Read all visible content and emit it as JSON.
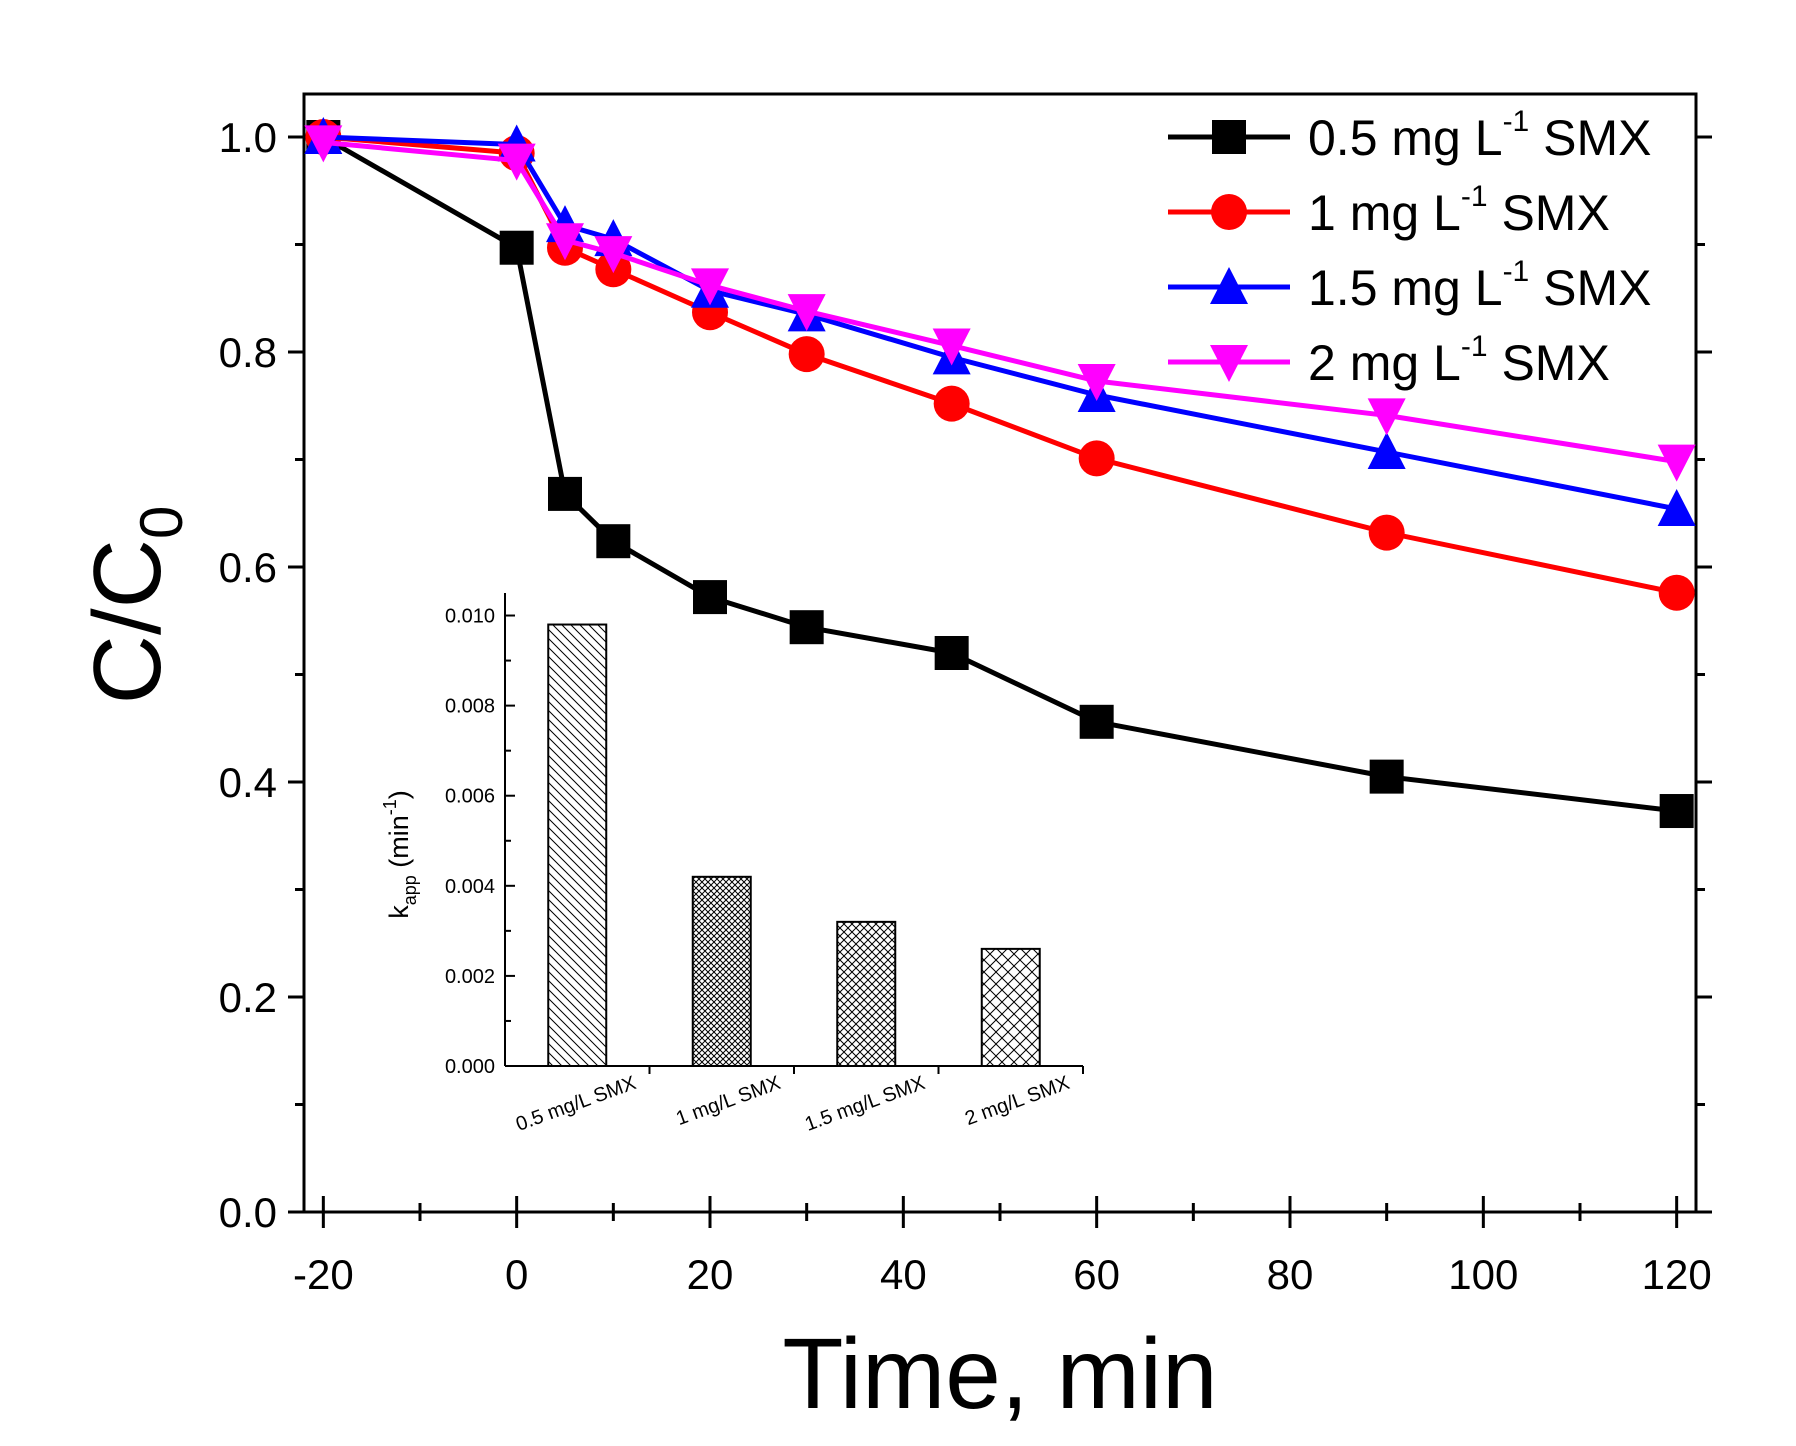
{
  "chart_data": [
    {
      "type": "line",
      "xlabel": "Time, min",
      "ylabel": "C/C",
      "ylabel_sub": "0",
      "xlim": [
        -22,
        122
      ],
      "ylim": [
        0.0,
        1.04
      ],
      "xticks": [
        -20,
        0,
        20,
        40,
        60,
        80,
        100,
        120
      ],
      "xtick_labels": [
        "-20",
        "0",
        "20",
        "40",
        "60",
        "80",
        "100",
        "120"
      ],
      "yticks": [
        0.0,
        0.2,
        0.4,
        0.6,
        0.8,
        1.0
      ],
      "ytick_labels": [
        "0.0",
        "0.2",
        "0.4",
        "0.6",
        "0.8",
        "1.0"
      ],
      "grid": false,
      "legend_position": "top-right",
      "x": [
        -20,
        0,
        5,
        10,
        20,
        30,
        45,
        60,
        90,
        120
      ],
      "series": [
        {
          "name_parts": [
            "0.5 mg L",
            "-1",
            " SMX"
          ],
          "color": "#000000",
          "marker": "square",
          "values": [
            1.0,
            0.897,
            0.668,
            0.624,
            0.572,
            0.544,
            0.52,
            0.456,
            0.405,
            0.373
          ]
        },
        {
          "name_parts": [
            "1 mg L",
            "-1",
            " SMX"
          ],
          "color": "#ff0000",
          "marker": "circle",
          "values": [
            1.0,
            0.985,
            0.897,
            0.877,
            0.837,
            0.798,
            0.752,
            0.701,
            0.632,
            0.576
          ]
        },
        {
          "name_parts": [
            "1.5 mg L",
            "-1",
            " SMX"
          ],
          "color": "#0000ff",
          "marker": "triangle-up",
          "values": [
            1.0,
            0.993,
            0.918,
            0.905,
            0.857,
            0.835,
            0.795,
            0.76,
            0.707,
            0.654
          ]
        },
        {
          "name_parts": [
            "2 mg L",
            "-1",
            " SMX"
          ],
          "color": "#ff00ff",
          "marker": "triangle-down",
          "values": [
            0.995,
            0.978,
            0.904,
            0.892,
            0.862,
            0.838,
            0.806,
            0.773,
            0.741,
            0.698
          ]
        }
      ]
    },
    {
      "type": "bar",
      "inset": true,
      "ylabel_parts": [
        "k",
        "app",
        " (min",
        "-1",
        ")"
      ],
      "categories": [
        "0.5 mg/L SMX",
        "1 mg/L SMX",
        "1.5 mg/L SMX",
        "2 mg/L SMX"
      ],
      "values": [
        0.0098,
        0.0042,
        0.0032,
        0.0026
      ],
      "ylim": [
        0.0,
        0.0105
      ],
      "yticks": [
        0.0,
        0.002,
        0.004,
        0.006,
        0.008,
        0.01
      ],
      "ytick_labels": [
        "0.000",
        "0.002",
        "0.004",
        "0.006",
        "0.008",
        "0.010"
      ],
      "hatches": [
        "diag-back",
        "cross-dense",
        "cross",
        "cross-wide"
      ]
    }
  ]
}
